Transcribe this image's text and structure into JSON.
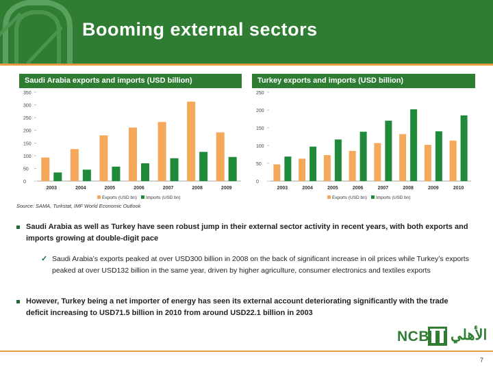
{
  "header": {
    "title": "Booming external sectors"
  },
  "colors": {
    "green": "#2e7d32",
    "orange": "#f4a85a",
    "imports_green": "#1e8a3a",
    "accent": "#e59a3f"
  },
  "charts": {
    "saudi": {
      "title": "Saudi Arabia exports and imports (USD billion)"
    },
    "turkey": {
      "title": "Turkey exports and imports (USD billion)"
    }
  },
  "chart_data": [
    {
      "type": "bar",
      "title": "Saudi Arabia exports and imports (USD billion)",
      "categories": [
        "2003",
        "2004",
        "2005",
        "2006",
        "2007",
        "2008",
        "2009"
      ],
      "series": [
        {
          "name": "Exports (USD bn)",
          "values": [
            93,
            126,
            180,
            211,
            233,
            313,
            192
          ]
        },
        {
          "name": "Imports (USD bn)",
          "values": [
            34,
            45,
            57,
            70,
            90,
            115,
            95
          ]
        }
      ],
      "ylim": [
        0,
        350
      ],
      "yticks": [
        0,
        50,
        100,
        150,
        200,
        250,
        300,
        350
      ],
      "legend": "bottom"
    },
    {
      "type": "bar",
      "title": "Turkey exports and imports (USD billion)",
      "categories": [
        "2003",
        "2004",
        "2005",
        "2006",
        "2007",
        "2008",
        "2009",
        "2010"
      ],
      "series": [
        {
          "name": "Exports (USD bn)",
          "values": [
            47,
            63,
            73,
            85,
            107,
            132,
            102,
            114
          ]
        },
        {
          "name": "Imports (USD bn)",
          "values": [
            69,
            97,
            117,
            139,
            170,
            202,
            140,
            185
          ]
        }
      ],
      "ylim": [
        0,
        250
      ],
      "yticks": [
        0,
        50,
        100,
        150,
        200,
        250
      ],
      "legend": "bottom"
    }
  ],
  "source": "Source: SAMA, Turkstat, IMF World Economic Outlook",
  "bullets": {
    "b1": "Saudi Arabia as well as Turkey have seen robust jump in their external sector activity in recent years, with both exports and imports growing at double-digit pace",
    "sub1": "Saudi Arabia’s exports peaked at over USD300 billion in 2008 on the back of significant increase in oil prices while Turkey’s exports peaked at over USD132 billion in the same year, driven by higher agriculture, consumer electronics and textiles exports",
    "b2": "However, Turkey being a net importer of energy has seen its external account deteriorating significantly with the trade deficit increasing to USD71.5 billion in 2010 from around USD22.1 billion in 2003"
  },
  "footer": {
    "page": "7",
    "logo_text": "NCB",
    "logo_arabic": "الأهلي"
  }
}
